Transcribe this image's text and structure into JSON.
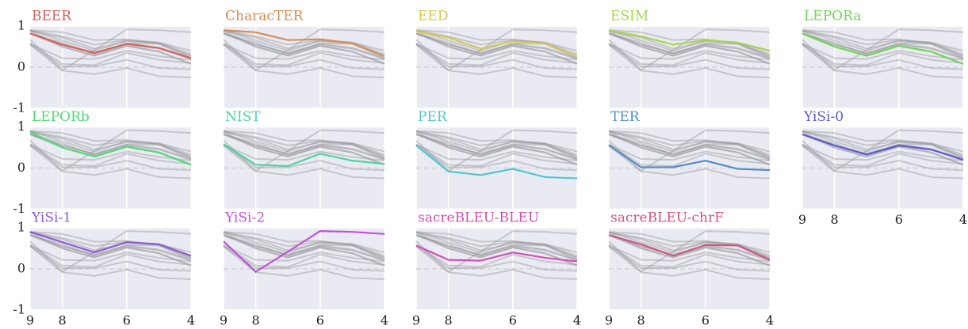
{
  "chart_data": {
    "type": "line",
    "x": [
      9,
      8,
      7,
      6,
      5,
      4
    ],
    "xlim": [
      9,
      4
    ],
    "xticks": [
      9,
      8,
      6,
      4
    ],
    "ylim": [
      -1,
      1
    ],
    "yticks": [
      -1,
      0,
      1
    ],
    "grid": true,
    "series": [
      {
        "name": "BEER",
        "color": "#d6605c",
        "values": [
          0.82,
          0.55,
          0.35,
          0.57,
          0.47,
          0.22
        ]
      },
      {
        "name": "CharacTER",
        "color": "#d98c55",
        "values": [
          0.9,
          0.85,
          0.66,
          0.68,
          0.58,
          0.27
        ]
      },
      {
        "name": "EED",
        "color": "#d2c853",
        "values": [
          0.88,
          0.72,
          0.45,
          0.63,
          0.58,
          0.27
        ]
      },
      {
        "name": "ESIM",
        "color": "#a6d650",
        "values": [
          0.9,
          0.75,
          0.55,
          0.66,
          0.6,
          0.4
        ]
      },
      {
        "name": "LEPORa",
        "color": "#6fd655",
        "values": [
          0.82,
          0.5,
          0.28,
          0.52,
          0.38,
          0.08
        ]
      },
      {
        "name": "LEPORb",
        "color": "#52d875",
        "values": [
          0.88,
          0.5,
          0.28,
          0.52,
          0.38,
          0.08
        ]
      },
      {
        "name": "NIST",
        "color": "#4fd2a2",
        "values": [
          0.58,
          0.08,
          0.05,
          0.35,
          0.18,
          0.1
        ]
      },
      {
        "name": "PER",
        "color": "#52c6cf",
        "values": [
          0.55,
          -0.08,
          -0.17,
          -0.02,
          -0.22,
          -0.25
        ]
      },
      {
        "name": "TER",
        "color": "#538cc8",
        "values": [
          0.55,
          0.02,
          0.02,
          0.18,
          -0.02,
          -0.05
        ]
      },
      {
        "name": "YiSi-0",
        "color": "#5a5ad6",
        "values": [
          0.82,
          0.55,
          0.33,
          0.55,
          0.45,
          0.2
        ]
      },
      {
        "name": "YiSi-1",
        "color": "#8b5ad6",
        "values": [
          0.9,
          0.65,
          0.4,
          0.65,
          0.6,
          0.32
        ]
      },
      {
        "name": "YiSi-2",
        "color": "#c053d8",
        "values": [
          0.67,
          -0.07,
          0.42,
          0.92,
          0.9,
          0.85
        ]
      },
      {
        "name": "sacreBLEU-BLEU",
        "color": "#d150b3",
        "values": [
          0.57,
          0.22,
          0.2,
          0.4,
          0.27,
          0.18
        ]
      },
      {
        "name": "sacreBLEU-chrF",
        "color": "#d05584",
        "values": [
          0.82,
          0.6,
          0.32,
          0.58,
          0.57,
          0.22
        ]
      }
    ]
  }
}
